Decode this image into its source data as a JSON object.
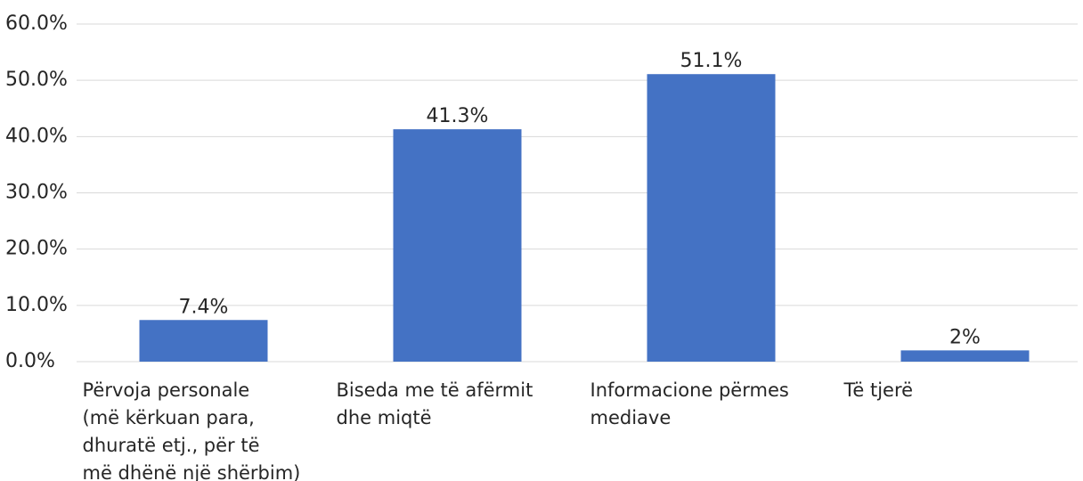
{
  "chart_data": {
    "type": "bar",
    "categories": [
      "Përvoja personale\n(më kërkuan para,\ndhuratë etj., për të\nmë dhënë një shërbim)",
      "Biseda me të afërmit\ndhe miqtë",
      "Informacione përmes\nmediave",
      "Të tjerë"
    ],
    "values": [
      7.4,
      41.3,
      51.1,
      2
    ],
    "value_labels": [
      "7.4%",
      "41.3%",
      "51.1%",
      "2%"
    ],
    "color": "#4472c4",
    "ylim": [
      0,
      60
    ],
    "yticks": [
      {
        "value": 0,
        "label": "0.0%"
      },
      {
        "value": 10,
        "label": "10.0%"
      },
      {
        "value": 20,
        "label": "20.0%"
      },
      {
        "value": 30,
        "label": "30.0%"
      },
      {
        "value": 40,
        "label": "40.0%"
      },
      {
        "value": 50,
        "label": "50.0%"
      },
      {
        "value": 60,
        "label": "60.0%"
      }
    ],
    "grid": true
  }
}
